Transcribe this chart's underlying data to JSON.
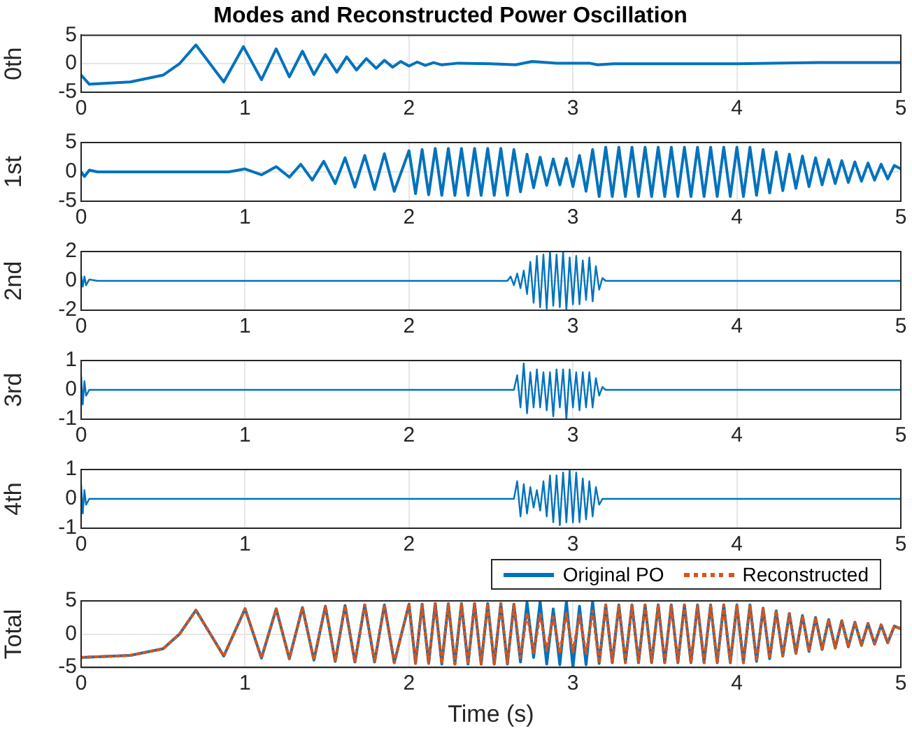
{
  "chart_data": [
    {
      "type": "line",
      "title": "Modes and Reconstructed Power Oscillation",
      "ylabel": "0th",
      "xlim": [
        0,
        5
      ],
      "xticks": [
        0,
        1,
        2,
        3,
        4,
        5
      ],
      "ylim": [
        -5,
        5
      ],
      "yticks": [
        -5,
        0,
        5
      ],
      "grid": true,
      "marker": "none",
      "x": [
        0,
        0.05,
        0.3,
        0.5,
        0.6,
        0.7,
        0.87,
        0.99,
        1.1,
        1.19,
        1.27,
        1.35,
        1.42,
        1.49,
        1.56,
        1.62,
        1.68,
        1.74,
        1.8,
        1.85,
        1.9,
        1.95,
        2,
        2.05,
        2.1,
        2.15,
        2.2,
        2.3,
        2.5,
        2.65,
        2.75,
        2.9,
        3.1,
        3.15,
        3.25,
        4,
        4.5,
        5
      ],
      "series": [
        {
          "color": "#0072bd",
          "line_style": "solid",
          "values": [
            -2,
            -3.6,
            -3.2,
            -2,
            0,
            3.3,
            -3.2,
            3,
            -2.8,
            2.6,
            -2.3,
            2.2,
            -1.9,
            1.6,
            -1.5,
            1.2,
            -1.1,
            0.9,
            -0.8,
            0.6,
            -0.6,
            0.4,
            -0.4,
            0.3,
            -0.3,
            0.2,
            -0.2,
            0.1,
            0,
            -0.2,
            0.4,
            0.1,
            0.1,
            -0.2,
            0,
            0,
            0.2,
            0.2
          ]
        }
      ]
    },
    {
      "type": "line",
      "ylabel": "1st",
      "xlim": [
        0,
        5
      ],
      "xticks": [
        0,
        1,
        2,
        3,
        4,
        5
      ],
      "ylim": [
        -5,
        5
      ],
      "yticks": [
        -5,
        0,
        5
      ],
      "grid": true,
      "marker": "none",
      "x": [
        0,
        0.02,
        0.05,
        0.1,
        0.9,
        1,
        1.1,
        1.19,
        1.27,
        1.34,
        1.41,
        1.48,
        1.55,
        1.61,
        1.67,
        1.73,
        1.79,
        1.85,
        1.91,
        2,
        2.04,
        2.08,
        2.12,
        2.16,
        2.2,
        2.24,
        2.28,
        2.32,
        2.36,
        2.4,
        2.44,
        2.48,
        2.52,
        2.56,
        2.6,
        2.64,
        2.68,
        2.72,
        2.76,
        2.8,
        2.84,
        2.88,
        2.92,
        2.96,
        3,
        3.04,
        3.08,
        3.12,
        3.16,
        3.2,
        3.24,
        3.28,
        3.32,
        3.36,
        3.4,
        3.44,
        3.48,
        3.52,
        3.56,
        3.6,
        3.64,
        3.68,
        3.72,
        3.76,
        3.8,
        3.84,
        3.88,
        3.92,
        3.96,
        4,
        4.04,
        4.08,
        4.12,
        4.16,
        4.2,
        4.24,
        4.28,
        4.32,
        4.36,
        4.4,
        4.44,
        4.48,
        4.52,
        4.56,
        4.6,
        4.64,
        4.68,
        4.72,
        4.76,
        4.8,
        4.84,
        4.88,
        4.92,
        4.96,
        5
      ],
      "series": [
        {
          "color": "#0072bd",
          "line_style": "solid",
          "values": [
            0,
            -0.8,
            0.3,
            0,
            0,
            0.5,
            -0.5,
            0.9,
            -0.9,
            1.3,
            -1.4,
            1.8,
            -2,
            2.4,
            -2.6,
            2.8,
            -3,
            3.1,
            -3.3,
            3.6,
            -3.7,
            3.8,
            -3.9,
            4,
            -4,
            4,
            -4,
            4,
            -4,
            4,
            -4,
            4,
            -4,
            4,
            -4,
            3.8,
            -3.4,
            3,
            -2.7,
            2.5,
            -2.3,
            2.2,
            -2.2,
            2.3,
            -2.5,
            2.8,
            -3.3,
            3.8,
            -4.2,
            4.2,
            -4.2,
            4.2,
            -4.2,
            4.2,
            -4.2,
            4.2,
            -4.2,
            4.2,
            -4.2,
            4.2,
            -4.2,
            4.2,
            -4.2,
            4.2,
            -4.2,
            4.2,
            -4.2,
            4.2,
            -4.2,
            4.2,
            -4.2,
            4.2,
            -4,
            3.8,
            -3.6,
            3.4,
            -3.2,
            3,
            -2.8,
            2.7,
            -2.5,
            2.4,
            -2.2,
            2.1,
            -2,
            1.9,
            -1.8,
            1.7,
            -1.6,
            1.5,
            -1.4,
            1.3,
            -1.2,
            1.1,
            0.5
          ]
        }
      ]
    },
    {
      "type": "line",
      "ylabel": "2nd",
      "xlim": [
        0,
        5
      ],
      "xticks": [
        0,
        1,
        2,
        3,
        4,
        5
      ],
      "ylim": [
        -2,
        2
      ],
      "yticks": [
        -2,
        0,
        2
      ],
      "grid": true,
      "marker": "none",
      "x": [
        0,
        0.01,
        0.02,
        0.03,
        0.05,
        0.1,
        2.6,
        2.62,
        2.64,
        2.66,
        2.68,
        2.7,
        2.72,
        2.74,
        2.76,
        2.78,
        2.8,
        2.82,
        2.84,
        2.86,
        2.88,
        2.9,
        2.92,
        2.94,
        2.96,
        2.98,
        3,
        3.02,
        3.04,
        3.06,
        3.08,
        3.1,
        3.12,
        3.14,
        3.16,
        3.18,
        3.2,
        5
      ],
      "series": [
        {
          "color": "#0072bd",
          "line_style": "solid",
          "values": [
            0.4,
            -0.4,
            0.3,
            -0.3,
            0.1,
            0,
            0,
            0.3,
            -0.3,
            0.5,
            -0.5,
            0.7,
            -0.9,
            1.3,
            -1.5,
            1.7,
            -1.8,
            1.8,
            -1.9,
            2,
            -1.7,
            1.8,
            -1.8,
            2,
            -2,
            1.6,
            -1.6,
            1.7,
            -1.6,
            1.4,
            -1.3,
            1.6,
            -1.4,
            1,
            -0.6,
            0.2,
            0,
            0
          ]
        }
      ]
    },
    {
      "type": "line",
      "ylabel": "3rd",
      "xlim": [
        0,
        5
      ],
      "xticks": [
        0,
        1,
        2,
        3,
        4,
        5
      ],
      "ylim": [
        -1,
        1
      ],
      "yticks": [
        -1,
        0,
        1
      ],
      "grid": true,
      "marker": "none",
      "x": [
        0,
        0.01,
        0.02,
        0.03,
        0.05,
        2.64,
        2.66,
        2.68,
        2.7,
        2.72,
        2.74,
        2.76,
        2.78,
        2.8,
        2.82,
        2.84,
        2.86,
        2.88,
        2.9,
        2.92,
        2.94,
        2.96,
        2.98,
        3,
        3.02,
        3.04,
        3.06,
        3.08,
        3.1,
        3.12,
        3.14,
        3.16,
        3.18,
        3.2,
        5
      ],
      "series": [
        {
          "color": "#0072bd",
          "line_style": "solid",
          "values": [
            0.5,
            -0.5,
            0.3,
            -0.2,
            0,
            0,
            0.5,
            -0.6,
            0.9,
            -0.8,
            0.6,
            -0.6,
            0.7,
            -0.6,
            0.6,
            -0.7,
            0.6,
            -0.9,
            0.7,
            -0.6,
            0.7,
            -1,
            0.7,
            -0.6,
            0.6,
            -0.7,
            0.6,
            -0.6,
            0.6,
            -0.6,
            0.4,
            -0.2,
            0.1,
            0,
            0
          ]
        }
      ]
    },
    {
      "type": "line",
      "ylabel": "4th",
      "xlim": [
        0,
        5
      ],
      "xticks": [
        0,
        1,
        2,
        3,
        4,
        5
      ],
      "ylim": [
        -1,
        1
      ],
      "yticks": [
        -1,
        0,
        1
      ],
      "grid": true,
      "marker": "none",
      "x": [
        0,
        0.01,
        0.02,
        0.03,
        0.05,
        2.64,
        2.66,
        2.68,
        2.7,
        2.72,
        2.74,
        2.76,
        2.78,
        2.8,
        2.82,
        2.84,
        2.86,
        2.88,
        2.9,
        2.92,
        2.94,
        2.96,
        2.98,
        3,
        3.02,
        3.04,
        3.06,
        3.08,
        3.1,
        3.12,
        3.14,
        3.16,
        3.18,
        5
      ],
      "series": [
        {
          "color": "#0072bd",
          "line_style": "solid",
          "values": [
            0.5,
            -0.5,
            0.3,
            -0.2,
            0,
            0,
            0.6,
            -0.6,
            0.5,
            -0.5,
            0.4,
            -0.3,
            0.3,
            -0.4,
            0.6,
            -0.6,
            0.8,
            -0.8,
            0.8,
            -0.9,
            0.9,
            -0.8,
            1,
            -0.8,
            0.9,
            -0.8,
            0.7,
            -0.7,
            0.6,
            -0.6,
            0.4,
            -0.2,
            0,
            0
          ]
        }
      ]
    },
    {
      "type": "line",
      "ylabel": "Total",
      "xlabel": "Time (s)",
      "xlim": [
        0,
        5
      ],
      "xticks": [
        0,
        1,
        2,
        3,
        4,
        5
      ],
      "ylim": [
        -5,
        5
      ],
      "yticks": [
        -5,
        0,
        5
      ],
      "grid": true,
      "marker": "none",
      "legend": "top right",
      "x": [
        0,
        0.3,
        0.5,
        0.6,
        0.7,
        0.87,
        1,
        1.1,
        1.19,
        1.27,
        1.35,
        1.42,
        1.49,
        1.55,
        1.61,
        1.67,
        1.73,
        1.79,
        1.85,
        1.91,
        2,
        2.04,
        2.08,
        2.12,
        2.16,
        2.2,
        2.24,
        2.28,
        2.32,
        2.36,
        2.4,
        2.44,
        2.48,
        2.52,
        2.56,
        2.6,
        2.64,
        2.68,
        2.72,
        2.76,
        2.8,
        2.84,
        2.88,
        2.92,
        2.96,
        3,
        3.04,
        3.08,
        3.12,
        3.16,
        3.2,
        3.24,
        3.28,
        3.32,
        3.36,
        3.4,
        3.44,
        3.48,
        3.52,
        3.56,
        3.6,
        3.64,
        3.68,
        3.72,
        3.76,
        3.8,
        3.84,
        3.88,
        3.92,
        3.96,
        4,
        4.04,
        4.08,
        4.12,
        4.16,
        4.2,
        4.24,
        4.28,
        4.32,
        4.36,
        4.4,
        4.44,
        4.48,
        4.52,
        4.56,
        4.6,
        4.64,
        4.68,
        4.72,
        4.76,
        4.8,
        4.84,
        4.88,
        4.92,
        4.96,
        5
      ],
      "series": [
        {
          "name": "Original PO",
          "color": "#0072bd",
          "line_style": "solid",
          "values": [
            -3.5,
            -3.2,
            -2.2,
            0,
            3.6,
            -3.3,
            3.8,
            -3.6,
            3.8,
            -3.7,
            4,
            -3.9,
            4.2,
            -4.1,
            4.3,
            -4.2,
            4.4,
            -4.2,
            4.4,
            -4.3,
            4.5,
            -4.4,
            4.5,
            -4.4,
            4.6,
            -4.5,
            4.6,
            -4.5,
            4.6,
            -4.5,
            4.6,
            -4.5,
            4.6,
            -4.5,
            4.6,
            -4.5,
            4.5,
            -4.2,
            4.8,
            -3.5,
            4.9,
            -4.5,
            3.8,
            -4.6,
            4.9,
            -5,
            4.2,
            -4.6,
            4.9,
            -4.4,
            4.4,
            -4.3,
            4.4,
            -4.3,
            4.4,
            -4.3,
            4.4,
            -4.3,
            4.4,
            -4.3,
            4.4,
            -4.3,
            4.4,
            -4.3,
            4.4,
            -4.3,
            4.4,
            -4.3,
            4.4,
            -4.3,
            4.4,
            -4.3,
            4.4,
            -4.1,
            3.9,
            -3.7,
            3.5,
            -3.3,
            3.1,
            -2.9,
            2.8,
            -2.6,
            2.5,
            -2.3,
            2.2,
            -2.1,
            2,
            -1.9,
            1.8,
            -1.7,
            1.6,
            -1.5,
            1.4,
            -1.3,
            1.2,
            0.8
          ]
        },
        {
          "name": "Reconstructed",
          "color": "#d95319",
          "line_style": "dotted",
          "values": [
            -3.5,
            -3.2,
            -2.2,
            0,
            3.6,
            -3.3,
            3.8,
            -3.6,
            3.8,
            -3.7,
            4,
            -3.9,
            4.2,
            -4.1,
            4.3,
            -4.2,
            4.4,
            -4.2,
            4.4,
            -4.3,
            4.5,
            -4.4,
            4.5,
            -4.4,
            4.6,
            -4.5,
            4.6,
            -4.5,
            4.6,
            -4.5,
            4.6,
            -4.5,
            4.6,
            -4.5,
            4.6,
            -4.5,
            4.5,
            -3.5,
            3.2,
            -2.8,
            3,
            -2.5,
            2.6,
            -2.9,
            3.1,
            -2.7,
            2.8,
            -3,
            3.5,
            -4.4,
            4.4,
            -4.3,
            4.4,
            -4.3,
            4.4,
            -4.3,
            4.4,
            -4.3,
            4.4,
            -4.3,
            4.4,
            -4.3,
            4.4,
            -4.3,
            4.4,
            -4.3,
            4.4,
            -4.3,
            4.4,
            -4.3,
            4.4,
            -4.3,
            4.4,
            -4.1,
            3.9,
            -3.7,
            3.5,
            -3.3,
            3.1,
            -2.9,
            2.8,
            -2.6,
            2.5,
            -2.3,
            2.2,
            -2.1,
            2,
            -1.9,
            1.8,
            -1.7,
            1.6,
            -1.5,
            1.4,
            -1.3,
            1.2,
            0.8
          ]
        }
      ]
    }
  ]
}
